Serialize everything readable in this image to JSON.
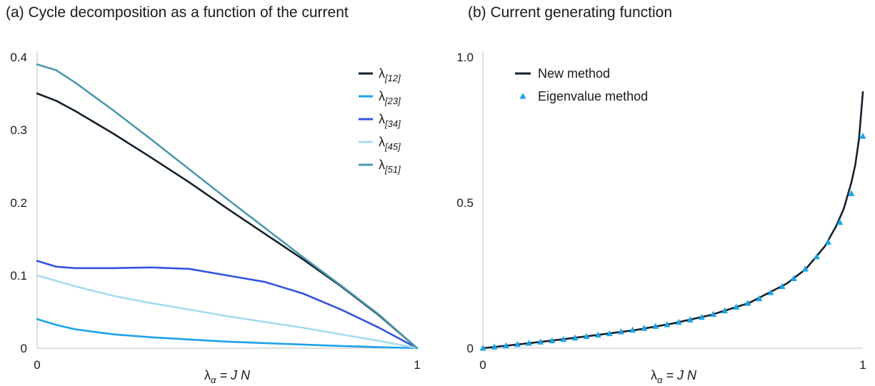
{
  "chart_data": [
    {
      "type": "line",
      "title": "(a) Cycle decomposition as a function of the current",
      "xlabel": {
        "main": "λ",
        "sub": "α",
        "rest": " = J N"
      },
      "xlim": [
        0,
        1
      ],
      "ylim": [
        0,
        0.4
      ],
      "xticks": [
        {
          "v": 0,
          "label": "0"
        },
        {
          "v": 1,
          "label": "1"
        }
      ],
      "yticks": [
        {
          "v": 0,
          "label": "0"
        },
        {
          "v": 0.1,
          "label": "0.1"
        },
        {
          "v": 0.2,
          "label": "0.2"
        },
        {
          "v": 0.3,
          "label": "0.3"
        },
        {
          "v": 0.4,
          "label": "0.4"
        }
      ],
      "legend_position": "top-right",
      "series": [
        {
          "name": "λ",
          "sub": "[12]",
          "color": "#13212e",
          "x": [
            0,
            0.05,
            0.1,
            0.2,
            0.3,
            0.4,
            0.5,
            0.6,
            0.7,
            0.8,
            0.9,
            1.0
          ],
          "y": [
            0.35,
            0.34,
            0.326,
            0.295,
            0.262,
            0.228,
            0.192,
            0.157,
            0.122,
            0.085,
            0.045,
            0.0
          ]
        },
        {
          "name": "λ",
          "sub": "[23]",
          "color": "#1aa3e8",
          "x": [
            0,
            0.05,
            0.1,
            0.2,
            0.3,
            0.4,
            0.5,
            0.6,
            0.7,
            0.8,
            0.9,
            1.0
          ],
          "y": [
            0.04,
            0.032,
            0.026,
            0.019,
            0.015,
            0.012,
            0.009,
            0.007,
            0.005,
            0.003,
            0.0015,
            0.0
          ]
        },
        {
          "name": "λ",
          "sub": "[34]",
          "color": "#3353e0",
          "x": [
            0,
            0.05,
            0.1,
            0.2,
            0.3,
            0.4,
            0.5,
            0.6,
            0.7,
            0.8,
            0.9,
            1.0
          ],
          "y": [
            0.12,
            0.112,
            0.11,
            0.11,
            0.111,
            0.109,
            0.1,
            0.091,
            0.075,
            0.053,
            0.028,
            0.0
          ]
        },
        {
          "name": "λ",
          "sub": "[45]",
          "color": "#a6dcee",
          "x": [
            0,
            0.1,
            0.2,
            0.3,
            0.4,
            0.5,
            0.6,
            0.7,
            0.8,
            0.9,
            1.0
          ],
          "y": [
            0.1,
            0.085,
            0.072,
            0.062,
            0.053,
            0.044,
            0.036,
            0.028,
            0.019,
            0.01,
            0.0
          ]
        },
        {
          "name": "λ",
          "sub": "[51]",
          "color": "#4c98ac",
          "x": [
            0,
            0.05,
            0.1,
            0.2,
            0.3,
            0.4,
            0.5,
            0.6,
            0.7,
            0.8,
            0.9,
            1.0
          ],
          "y": [
            0.39,
            0.382,
            0.365,
            0.327,
            0.287,
            0.246,
            0.205,
            0.165,
            0.125,
            0.086,
            0.046,
            0.0
          ]
        }
      ]
    },
    {
      "type": "line",
      "title": "(b) Current generating function",
      "xlabel": {
        "main": "λ",
        "sub": "α",
        "rest": " = J N"
      },
      "xlim": [
        0,
        1
      ],
      "ylim": [
        0,
        1.0
      ],
      "xticks": [
        {
          "v": 0,
          "label": "0"
        },
        {
          "v": 1,
          "label": "1"
        }
      ],
      "yticks": [
        {
          "v": 0,
          "label": "0"
        },
        {
          "v": 0.5,
          "label": "0.5"
        },
        {
          "v": 1.0,
          "label": "1.0"
        }
      ],
      "legend_position": "top-left",
      "series": [
        {
          "name": "New method",
          "color": "#13212e",
          "style": "line",
          "x": [
            0,
            0.1,
            0.2,
            0.3,
            0.4,
            0.5,
            0.6,
            0.7,
            0.8,
            0.85,
            0.9,
            0.93,
            0.95,
            0.97,
            0.98,
            0.99,
            1.0
          ],
          "y": [
            0,
            0.014,
            0.029,
            0.045,
            0.062,
            0.085,
            0.114,
            0.155,
            0.222,
            0.272,
            0.35,
            0.42,
            0.48,
            0.57,
            0.63,
            0.72,
            0.88
          ]
        },
        {
          "name": "Eigenvalue method",
          "color": "#1aa3e8",
          "style": "marker",
          "x": [
            0,
            0.0303,
            0.0606,
            0.0909,
            0.1212,
            0.1515,
            0.1818,
            0.2121,
            0.2424,
            0.2727,
            0.303,
            0.3333,
            0.3636,
            0.3939,
            0.4242,
            0.4545,
            0.4848,
            0.5152,
            0.5455,
            0.5758,
            0.6061,
            0.6364,
            0.6667,
            0.697,
            0.7273,
            0.7576,
            0.7879,
            0.8182,
            0.8485,
            0.8788,
            0.9091,
            0.9394,
            0.9697,
            1.0
          ],
          "y": [
            0,
            0.004,
            0.008,
            0.0125,
            0.017,
            0.021,
            0.0255,
            0.03,
            0.035,
            0.04,
            0.045,
            0.05,
            0.056,
            0.062,
            0.068,
            0.075,
            0.081,
            0.089,
            0.097,
            0.106,
            0.116,
            0.128,
            0.141,
            0.154,
            0.17,
            0.191,
            0.212,
            0.239,
            0.272,
            0.314,
            0.364,
            0.432,
            0.531,
            0.728
          ]
        }
      ]
    }
  ]
}
